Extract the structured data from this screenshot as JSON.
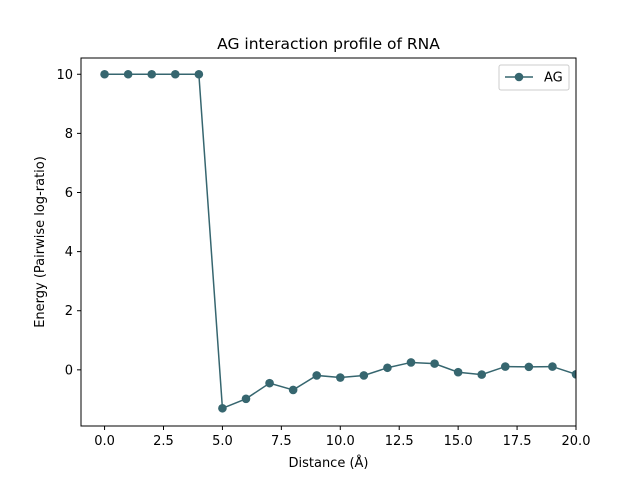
{
  "chart_data": {
    "type": "line",
    "title": "AG interaction profile of  RNA",
    "xlabel": "Distance (Å)",
    "ylabel": "Energy (Pairwise log-ratio)",
    "xlim": [
      -1,
      20
    ],
    "ylim": [
      -1.9,
      10.55
    ],
    "xticks": [
      0,
      2.5,
      5,
      7.5,
      10,
      12.5,
      15,
      17.5,
      20
    ],
    "xtick_labels": [
      "0.0",
      "2.5",
      "5.0",
      "7.5",
      "10.0",
      "12.5",
      "15.0",
      "17.5",
      "20.0"
    ],
    "yticks": [
      0,
      2,
      4,
      6,
      8,
      10
    ],
    "ytick_labels": [
      "0",
      "2",
      "4",
      "6",
      "8",
      "10"
    ],
    "grid": false,
    "legend_position": "top-right",
    "series": [
      {
        "name": "AG",
        "color": "#36666f",
        "marker": "circle",
        "x": [
          0,
          1,
          2,
          3,
          4,
          5,
          6,
          7,
          8,
          9,
          10,
          11,
          12,
          13,
          14,
          15,
          16,
          17,
          18,
          19,
          20
        ],
        "y": [
          10,
          10,
          10,
          10,
          10,
          -1.3,
          -0.98,
          -0.45,
          -0.68,
          -0.19,
          -0.26,
          -0.19,
          0.07,
          0.25,
          0.21,
          -0.08,
          -0.16,
          0.11,
          0.1,
          0.11,
          -0.15
        ]
      }
    ]
  }
}
